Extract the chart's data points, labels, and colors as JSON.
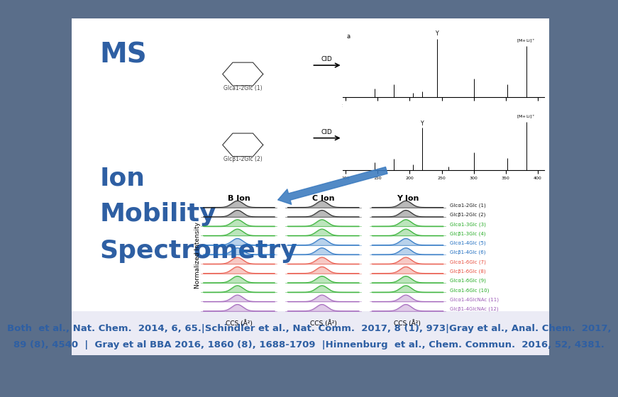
{
  "bg_outer": "#5a6e8a",
  "bg_inner": "#ffffff",
  "title_ms": "MS",
  "title_ms_color": "#2e5fa3",
  "title_ms_fontsize": 28,
  "title_ims": [
    "Ion",
    "Mobility",
    "Spectrometry"
  ],
  "title_ims_color": "#2e5fa3",
  "title_ims_fontsize": 26,
  "citation_line1": "Both  et al., Nat. Chem.  2014, 6, 65.|Schindler et al., Nat. Comm.  2017, 8 (1), 973|Gray et al., Anal. Chem.  2017,",
  "citation_line2": "89 (8), 4540  |  Gray et al BBA 2016, 1860 (8), 1688-1709  |Hinnenburg  et al., Chem. Commun.  2016, 52, 4381.",
  "citation_color": "#2e5fa3",
  "citation_fontsize": 9.5,
  "colors_ims": [
    "#1a1a1a",
    "#1a1a1a",
    "#22aa22",
    "#22aa22",
    "#1a6abf",
    "#1a6abf",
    "#e74c3c",
    "#e74c3c",
    "#22aa22",
    "#22aa22",
    "#9b59b6",
    "#9b59b6"
  ],
  "labels_ims": [
    "Glcα1-2Glc (1)",
    "Glcβ1-2Glc (2)",
    "Glcα1-3Glc (3)",
    "Glcβ1-3Glc (4)",
    "Glcα1-4Glc (5)",
    "Glcβ1-4Glc (6)",
    "Glcα1-6Glc (7)",
    "Glcβ1-6Glc (8)",
    "Glcα1-6Glc (9)",
    "Glcα1-6Glc (10)",
    "Glcα1-4GlcNAc (11)",
    "Glcβ1-4GlcNAc (12)"
  ]
}
